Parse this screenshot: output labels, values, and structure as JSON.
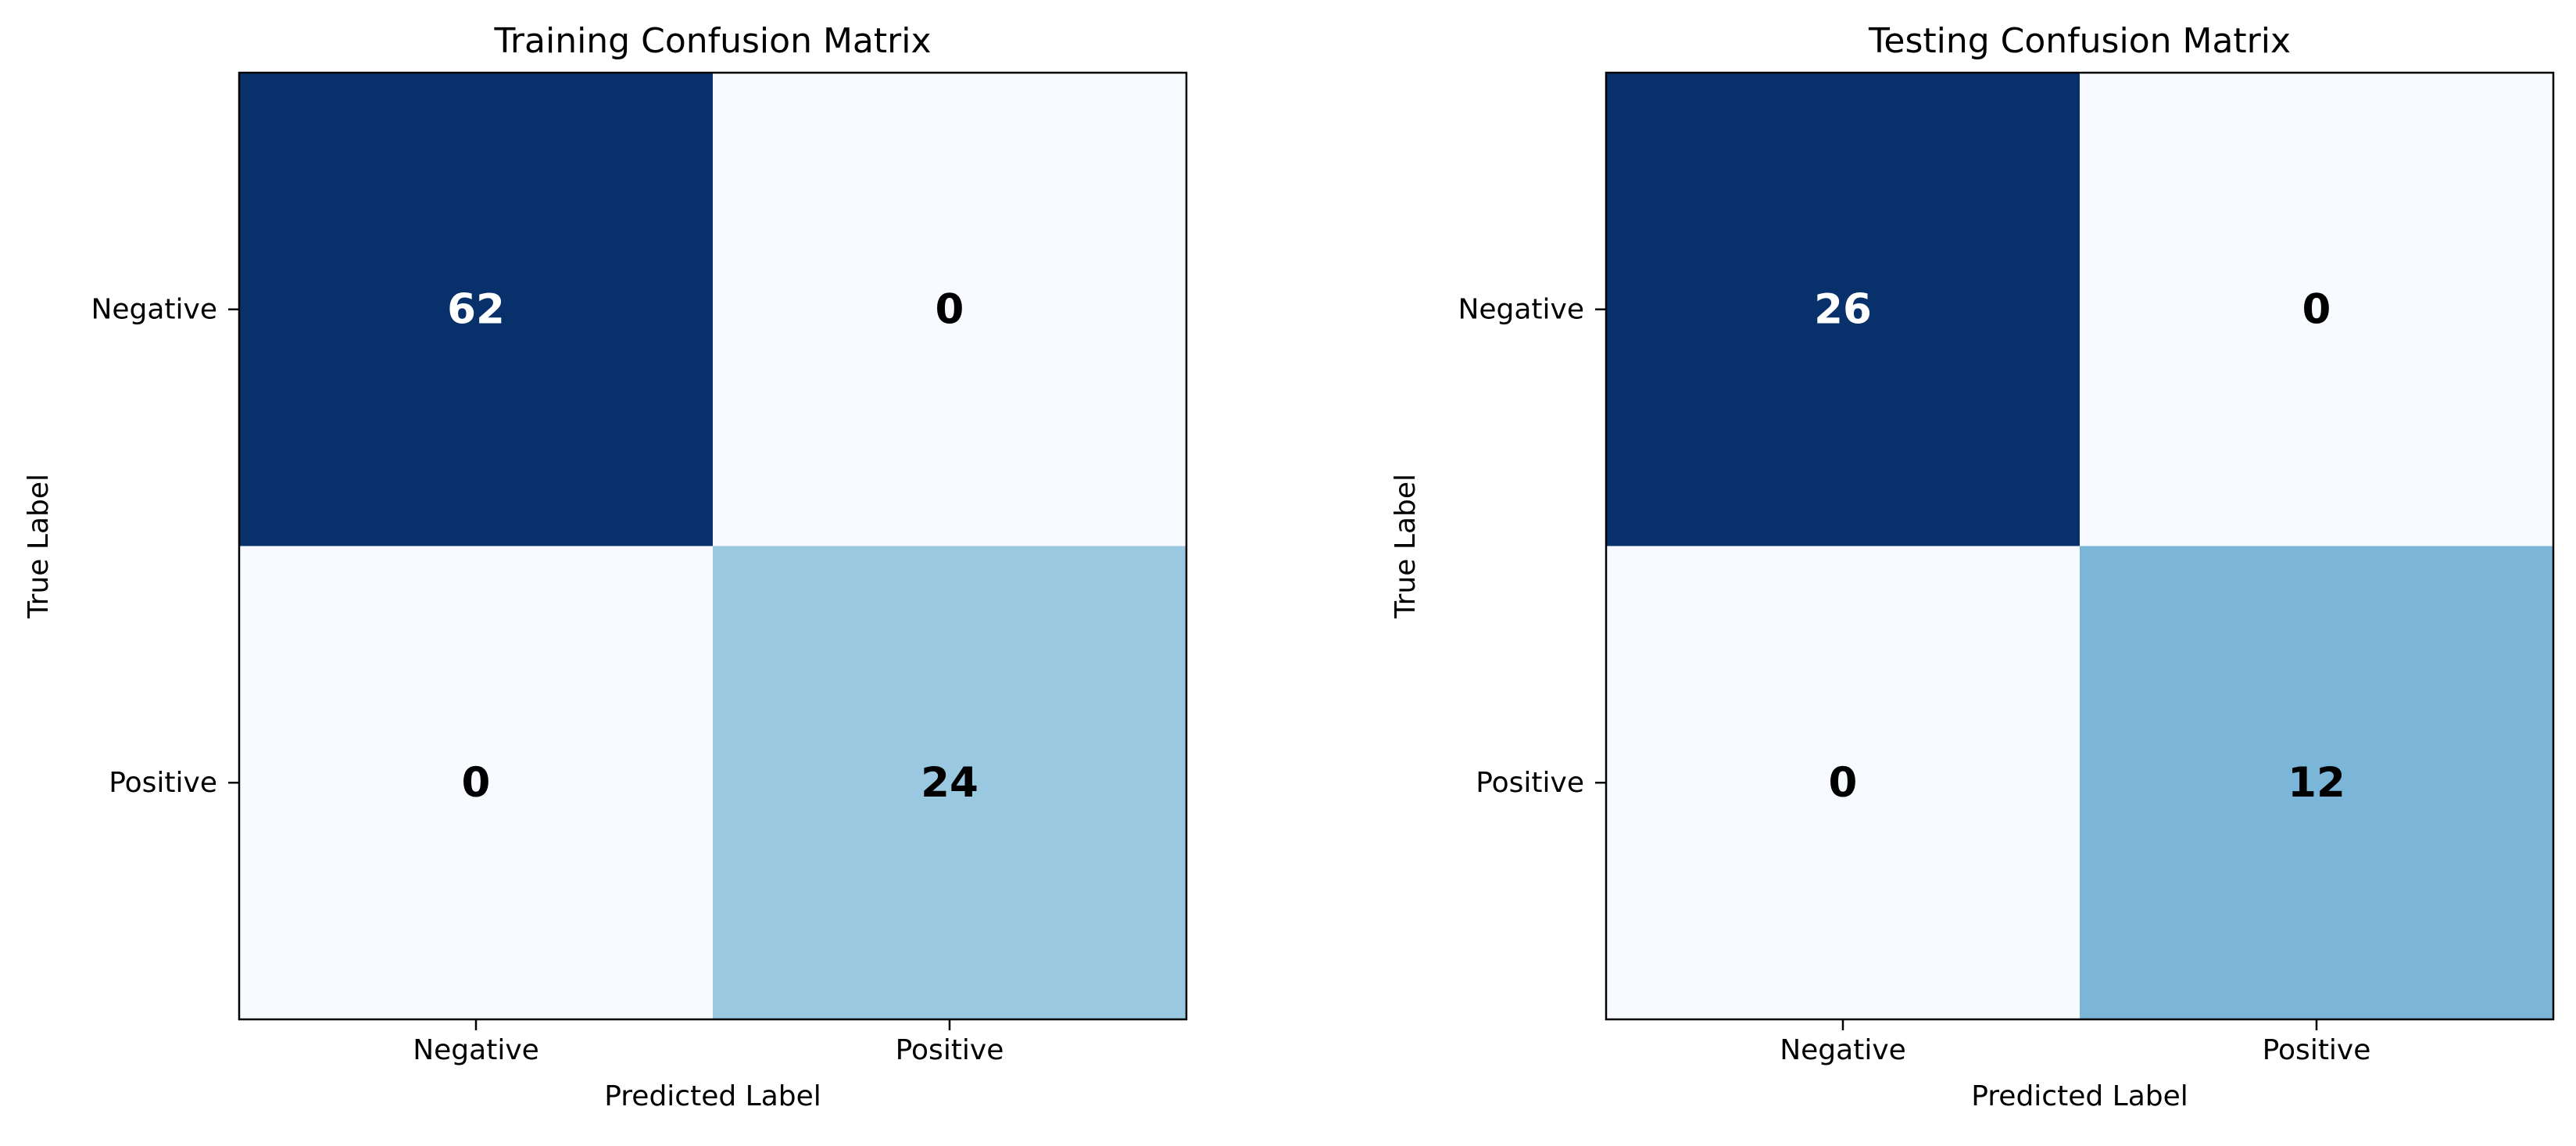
{
  "colors": {
    "background": "#ffffff",
    "axis": "#000000",
    "text_on_dark": "#ffffff",
    "text_on_light": "#000000",
    "colormap": "Blues"
  },
  "chart_data": [
    {
      "type": "heatmap",
      "title": "Training Confusion Matrix",
      "xlabel": "Predicted Label",
      "ylabel": "True Label",
      "x_ticks": [
        "Negative",
        "Positive"
      ],
      "y_ticks": [
        "Negative",
        "Positive"
      ],
      "values": [
        [
          62,
          0
        ],
        [
          0,
          24
        ]
      ],
      "cell_colors": [
        [
          "#08306b",
          "#f7fbff"
        ],
        [
          "#f7fbff",
          "#9ac8e0"
        ]
      ],
      "grid": false
    },
    {
      "type": "heatmap",
      "title": "Testing Confusion Matrix",
      "xlabel": "Predicted Label",
      "ylabel": "True Label",
      "x_ticks": [
        "Negative",
        "Positive"
      ],
      "y_ticks": [
        "Negative",
        "Positive"
      ],
      "values": [
        [
          26,
          0
        ],
        [
          0,
          12
        ]
      ],
      "cell_colors": [
        [
          "#08306b",
          "#f7fbff"
        ],
        [
          "#f7fbff",
          "#7bb6d9"
        ]
      ],
      "grid": false
    }
  ]
}
